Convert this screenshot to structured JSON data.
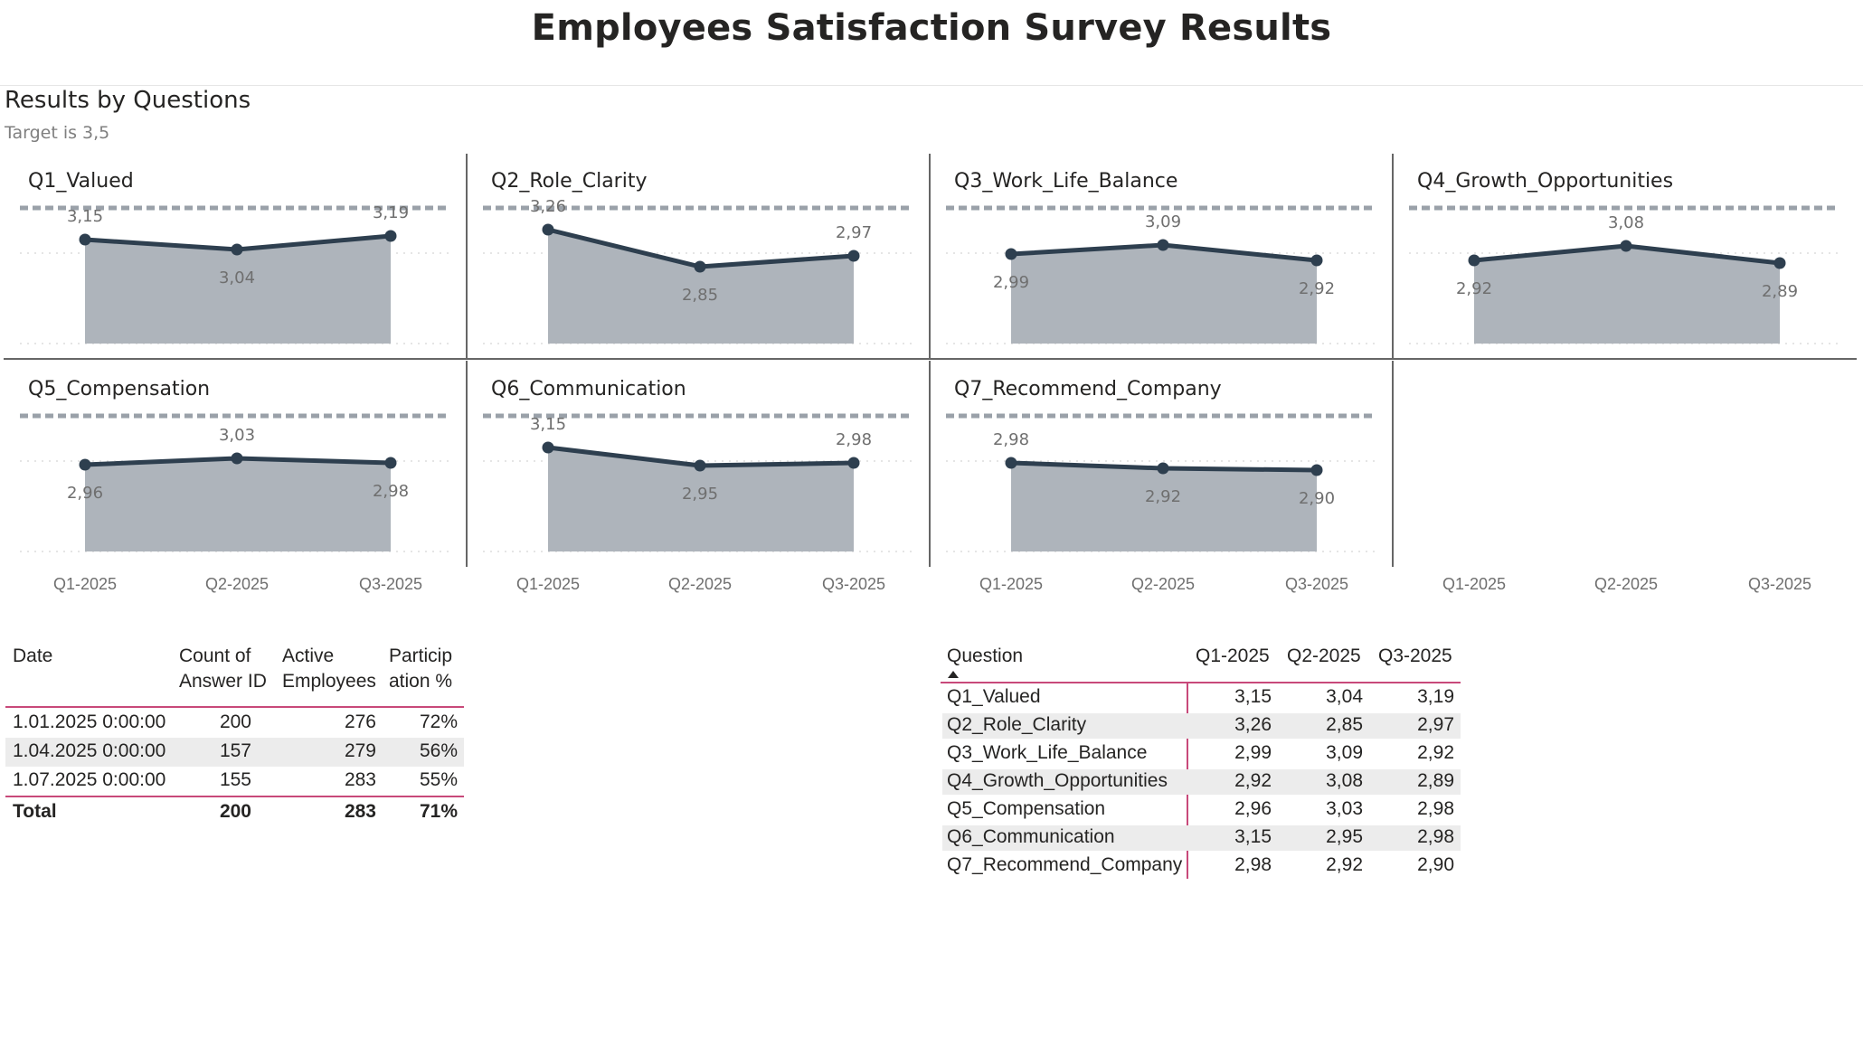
{
  "report_title": "Employees Satisfaction Survey Results",
  "section_title": "Results by Questions",
  "section_subtitle": "Target is 3,5",
  "chart_data": {
    "type": "area",
    "layout": "small-multiples",
    "x": [
      "Q1-2025",
      "Q2-2025",
      "Q3-2025"
    ],
    "ylim": [
      2.0,
      4.0
    ],
    "target": 3.5,
    "grid": true,
    "series": [
      {
        "name": "Q1_Valued",
        "values": [
          3.15,
          3.04,
          3.19
        ],
        "labels": [
          "3,15",
          "3,04",
          "3,19"
        ]
      },
      {
        "name": "Q2_Role_Clarity",
        "values": [
          3.26,
          2.85,
          2.97
        ],
        "labels": [
          "3,26",
          "2,85",
          "2,97"
        ]
      },
      {
        "name": "Q3_Work_Life_Balance",
        "values": [
          2.99,
          3.09,
          2.92
        ],
        "labels": [
          "2,99",
          "3,09",
          "2,92"
        ]
      },
      {
        "name": "Q4_Growth_Opportunities",
        "values": [
          2.92,
          3.08,
          2.89
        ],
        "labels": [
          "2,92",
          "3,08",
          "2,89"
        ]
      },
      {
        "name": "Q5_Compensation",
        "values": [
          2.96,
          3.03,
          2.98
        ],
        "labels": [
          "2,96",
          "3,03",
          "2,98"
        ]
      },
      {
        "name": "Q6_Communication",
        "values": [
          3.15,
          2.95,
          2.98
        ],
        "labels": [
          "3,15",
          "2,95",
          "2,98"
        ]
      },
      {
        "name": "Q7_Recommend_Company",
        "values": [
          2.98,
          2.92,
          2.9
        ],
        "labels": [
          "2,98",
          "2,92",
          "2,90"
        ]
      }
    ],
    "colors": {
      "area": "#aeb4bb",
      "line": "#2e3f4f",
      "target": "#9aa1a9",
      "grid": "#d5d5d5",
      "label": "#6f6f6f"
    }
  },
  "participation_table": {
    "headers": [
      "Date",
      "Count of Answer ID",
      "Active Employees",
      "Participation %"
    ],
    "header_lines": [
      [
        "Date"
      ],
      [
        "Count of",
        "Answer ID"
      ],
      [
        "Active",
        "Employees"
      ],
      [
        "Particip",
        "ation %"
      ]
    ],
    "rows": [
      [
        "1.01.2025 0:00:00",
        "200",
        "276",
        "72%"
      ],
      [
        "1.04.2025 0:00:00",
        "157",
        "279",
        "56%"
      ],
      [
        "1.07.2025 0:00:00",
        "155",
        "283",
        "55%"
      ]
    ],
    "total": [
      "Total",
      "200",
      "283",
      "71%"
    ]
  },
  "question_table": {
    "headers": [
      "Question",
      "Q1-2025",
      "Q2-2025",
      "Q3-2025"
    ],
    "rows": [
      [
        "Q1_Valued",
        "3,15",
        "3,04",
        "3,19"
      ],
      [
        "Q2_Role_Clarity",
        "3,26",
        "2,85",
        "2,97"
      ],
      [
        "Q3_Work_Life_Balance",
        "2,99",
        "3,09",
        "2,92"
      ],
      [
        "Q4_Growth_Opportunities",
        "2,92",
        "3,08",
        "2,89"
      ],
      [
        "Q5_Compensation",
        "2,96",
        "3,03",
        "2,98"
      ],
      [
        "Q6_Communication",
        "3,15",
        "2,95",
        "2,98"
      ],
      [
        "Q7_Recommend_Company",
        "2,98",
        "2,92",
        "2,90"
      ]
    ]
  }
}
